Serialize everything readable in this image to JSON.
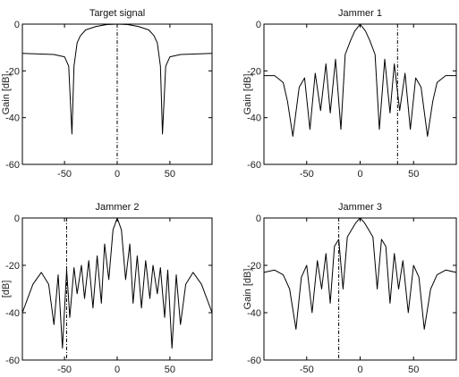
{
  "chart_data": [
    {
      "type": "line",
      "title": "Target signal",
      "ylabel": "Gain [dB]",
      "xlim": [
        -90,
        90
      ],
      "ylim": [
        -60,
        0
      ],
      "xticks": [
        -50,
        0,
        50
      ],
      "yticks": [
        0,
        -20,
        -40,
        -60
      ],
      "grid": false,
      "marker_x": 0,
      "series": [
        {
          "x": [
            -90,
            -60,
            -50,
            -46,
            -43,
            -41,
            -38,
            -35,
            -30,
            -20,
            -10,
            0,
            10,
            20,
            30,
            35,
            38,
            41,
            43,
            46,
            50,
            60,
            90
          ],
          "values": [
            -12.5,
            -13,
            -14,
            -18,
            -47,
            -18,
            -8,
            -5,
            -2.5,
            -1,
            -0.2,
            0,
            -0.2,
            -1,
            -2.5,
            -5,
            -8,
            -18,
            -47,
            -18,
            -14,
            -13,
            -12.5
          ]
        }
      ]
    },
    {
      "type": "line",
      "title": "Jammer 1",
      "ylabel": "Gain [dB]",
      "xlim": [
        -90,
        90
      ],
      "ylim": [
        -60,
        0
      ],
      "xticks": [
        -50,
        0,
        50
      ],
      "yticks": [
        0,
        -20,
        -40,
        -60
      ],
      "grid": false,
      "marker_x": 35,
      "series": [
        {
          "x": [
            -90,
            -80,
            -72,
            -68,
            -63,
            -57,
            -52,
            -47,
            -42,
            -37,
            -32,
            -28,
            -23,
            -18,
            -14,
            -9,
            -5,
            0,
            5,
            9,
            14,
            18,
            23,
            28,
            32,
            37,
            42,
            47,
            52,
            57,
            63,
            68,
            72,
            80,
            90
          ],
          "values": [
            -22,
            -22,
            -25,
            -33,
            -48,
            -27,
            -23,
            -45,
            -21,
            -37,
            -17,
            -38,
            -15,
            -45,
            -13,
            -7,
            -3,
            0,
            -3,
            -7,
            -13,
            -45,
            -15,
            -38,
            -17,
            -37,
            -21,
            -45,
            -23,
            -27,
            -48,
            -33,
            -25,
            -22,
            -22
          ]
        }
      ]
    },
    {
      "type": "line",
      "title": "Jammer 2",
      "ylabel": "[dB]",
      "xlim": [
        -90,
        90
      ],
      "ylim": [
        -60,
        0
      ],
      "xticks": [
        -50,
        0,
        50
      ],
      "yticks": [
        0,
        -20,
        -40,
        -60
      ],
      "grid": false,
      "marker_x": -48,
      "series": [
        {
          "x": [
            -90,
            -80,
            -72,
            -65,
            -60,
            -56,
            -52,
            -48,
            -45,
            -41,
            -38,
            -34,
            -31,
            -27,
            -23,
            -19,
            -15,
            -12,
            -8,
            -4,
            0,
            4,
            8,
            12,
            15,
            19,
            23,
            27,
            31,
            34,
            38,
            41,
            45,
            48,
            52,
            56,
            60,
            65,
            72,
            80,
            90
          ],
          "values": [
            -40,
            -28,
            -23,
            -28,
            -45,
            -24,
            -55,
            -22,
            -42,
            -21,
            -32,
            -20,
            -34,
            -18,
            -38,
            -16,
            -36,
            -11,
            -26,
            -5,
            0,
            -5,
            -26,
            -11,
            -36,
            -16,
            -38,
            -18,
            -34,
            -20,
            -32,
            -21,
            -42,
            -22,
            -55,
            -24,
            -45,
            -28,
            -23,
            -28,
            -40
          ]
        }
      ]
    },
    {
      "type": "line",
      "title": "Jammer 3",
      "ylabel": "Gain [dB]",
      "xlim": [
        -90,
        90
      ],
      "ylim": [
        -60,
        0
      ],
      "xticks": [
        -50,
        0,
        50
      ],
      "yticks": [
        0,
        -20,
        -40,
        -60
      ],
      "grid": false,
      "marker_x": -20,
      "series": [
        {
          "x": [
            -90,
            -80,
            -72,
            -66,
            -60,
            -55,
            -50,
            -45,
            -40,
            -36,
            -32,
            -28,
            -24,
            -20,
            -16,
            -12,
            -8,
            -4,
            0,
            4,
            8,
            12,
            16,
            20,
            24,
            28,
            32,
            36,
            40,
            45,
            50,
            55,
            60,
            66,
            72,
            80,
            90
          ],
          "values": [
            -23,
            -22,
            -24,
            -30,
            -47,
            -25,
            -20,
            -40,
            -18,
            -30,
            -15,
            -36,
            -12,
            -9,
            -30,
            -8,
            -5,
            -2,
            0,
            -2,
            -5,
            -8,
            -30,
            -9,
            -12,
            -36,
            -15,
            -30,
            -18,
            -40,
            -20,
            -25,
            -47,
            -30,
            -24,
            -22,
            -23
          ]
        }
      ]
    }
  ]
}
